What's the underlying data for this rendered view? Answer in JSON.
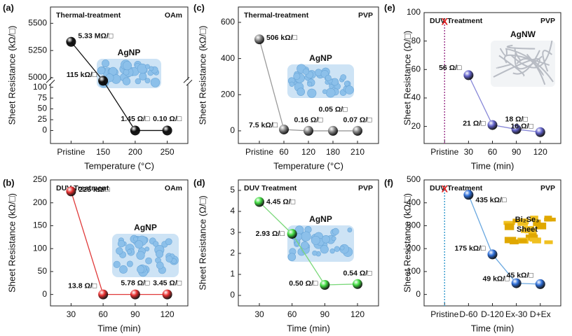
{
  "chart_data": [
    {
      "type": "line",
      "panel": "(a)",
      "title": "Thermal-treatment",
      "tag": "OAm",
      "inset_labels": [
        "AgNP"
      ],
      "xlabel": "Temperature (°C)",
      "ylabel": "Sheet Resistance (kΩ/□)",
      "categories": [
        "Pristine",
        "150",
        "200",
        "250"
      ],
      "values": [
        5330,
        115,
        0.00145,
        0.0001
      ],
      "value_labels": [
        "5.33 MΩ/□",
        "115 kΩ/□",
        "1.45 Ω/□",
        "0.10 Ω/□"
      ],
      "color": "#111111",
      "line_color": "#111111",
      "y_segments": [
        {
          "ylim": [
            -30,
            112
          ],
          "yticks": [
            0,
            25,
            50,
            75,
            100
          ]
        },
        {
          "ylim": [
            4960,
            5650
          ],
          "yticks": [
            5000,
            5250,
            5500
          ]
        }
      ]
    },
    {
      "type": "line",
      "panel": "(b)",
      "title": "DUV Treatment",
      "tag": "OAm",
      "inset_labels": [
        "AgNP"
      ],
      "xlabel": "Time (min)",
      "ylabel": "Sheet Resistance (kΩ/□)",
      "categories": [
        "30",
        "60",
        "90",
        "120"
      ],
      "values": [
        225,
        0.0138,
        0.00578,
        0.00345
      ],
      "value_labels": [
        "225 kΩ/□",
        "13.8 Ω/□",
        "5.78 Ω/□",
        "3.45 Ω/□"
      ],
      "color": "#e83030",
      "line_color": "#e03a3a",
      "ylim": [
        -25,
        250
      ],
      "yticks": [
        0,
        50,
        100,
        150,
        200,
        250
      ]
    },
    {
      "type": "line",
      "panel": "(c)",
      "title": "Thermal-treatment",
      "tag": "PVP",
      "inset_labels": [
        "AgNP"
      ],
      "xlabel": "Temperature (°C)",
      "ylabel": "Sheet Resistance (kΩ/□)",
      "categories": [
        "Pristine",
        "60",
        "120",
        "180",
        "210"
      ],
      "values": [
        506,
        7.5,
        0.00016,
        5e-05,
        7e-05
      ],
      "value_labels": [
        "506 kΩ/□",
        "7.5 kΩ/□",
        "0.16 Ω/□",
        "0.05 Ω/□",
        "0.07 Ω/□"
      ],
      "color": "#8a8a8a",
      "line_color": "#9a9a9a",
      "ylim": [
        -70,
        685
      ],
      "yticks": [
        0,
        200,
        400,
        600
      ]
    },
    {
      "type": "line",
      "panel": "(d)",
      "title": "DUV Treatment",
      "tag": "PVP",
      "inset_labels": [
        "AgNP"
      ],
      "xlabel": "Time (min)",
      "ylabel": "Sheet Resistance (Ω/□)",
      "categories": [
        "30",
        "60",
        "90",
        "120"
      ],
      "values": [
        4.45,
        2.93,
        0.5,
        0.54
      ],
      "value_labels": [
        "4.45 Ω/□",
        "2.93 Ω/□",
        "0.50 Ω/□",
        "0.54 Ω/□"
      ],
      "color": "#44dd44",
      "line_color": "#7ad87a",
      "ylim": [
        -0.5,
        5.5
      ],
      "yticks": [
        0,
        1,
        2,
        3,
        4,
        5
      ]
    },
    {
      "type": "line",
      "panel": "(e)",
      "title": "DUV Treatment",
      "tag": "PVP",
      "inset_labels": [
        "AgNW"
      ],
      "xlabel": "Time (min)",
      "ylabel": "Sheet Resistance (Ω/□)",
      "fail_marker": "X",
      "categories": [
        "Pristine",
        "30",
        "60",
        "90",
        "120"
      ],
      "values": [
        null,
        56,
        21,
        18,
        16
      ],
      "value_labels": [
        null,
        "56 Ω/□",
        "21 Ω/□",
        "18 Ω/□",
        "16 Ω/□"
      ],
      "color": "#6464cc",
      "line_color": "#8888d8",
      "ylim": [
        8,
        100
      ],
      "yticks": [
        20,
        40,
        60,
        80,
        100
      ]
    },
    {
      "type": "line",
      "panel": "(f)",
      "title": "DUV Treatment",
      "tag": "PVP",
      "inset_labels": [
        "Bi₂Se₃",
        "Sheet"
      ],
      "xlabel": "Time (min)",
      "ylabel": "Sheet Resistance (kΩ/□)",
      "fail_marker": "X",
      "categories": [
        "Pristine",
        "D-60",
        "D-120",
        "Ex-30",
        "D+Ex"
      ],
      "values": [
        null,
        435,
        175,
        49,
        45
      ],
      "value_labels": [
        null,
        "435 kΩ/□",
        "175 kΩ/□",
        "49 kΩ/□",
        "45 kΩ/□"
      ],
      "color": "#2f6fd8",
      "line_color": "#6aa8e0",
      "ylim": [
        -50,
        500
      ],
      "yticks": [
        0,
        100,
        200,
        300,
        400,
        500
      ]
    }
  ]
}
